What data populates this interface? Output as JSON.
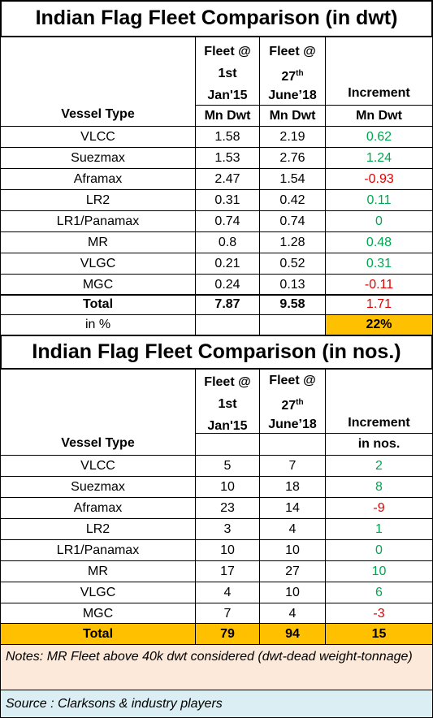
{
  "table_dwt": {
    "title": "Indian Flag Fleet Comparison  (in dwt)",
    "header": {
      "col_fleet_2015": [
        "Fleet @",
        "1st",
        "Jan'15"
      ],
      "col_fleet_2018": [
        "Fleet @",
        "27",
        "th",
        "June’18"
      ],
      "col_increment": "Increment",
      "vessel_type": "Vessel Type",
      "unit_2015": "Mn Dwt",
      "unit_2018": "Mn Dwt",
      "unit_increment": "Mn Dwt"
    },
    "rows": [
      {
        "type": "VLCC",
        "fleet_2015": "1.58",
        "fleet_2018": "2.19",
        "increment": "0.62",
        "sign": "pos"
      },
      {
        "type": "Suezmax",
        "fleet_2015": "1.53",
        "fleet_2018": "2.76",
        "increment": "1.24",
        "sign": "pos"
      },
      {
        "type": "Aframax",
        "fleet_2015": "2.47",
        "fleet_2018": "1.54",
        "increment": "-0.93",
        "sign": "neg"
      },
      {
        "type": "LR2",
        "fleet_2015": "0.31",
        "fleet_2018": "0.42",
        "increment": "0.11",
        "sign": "pos"
      },
      {
        "type": "LR1/Panamax",
        "fleet_2015": "0.74",
        "fleet_2018": "0.74",
        "increment": "0",
        "sign": "pos"
      },
      {
        "type": "MR",
        "fleet_2015": "0.8",
        "fleet_2018": "1.28",
        "increment": "0.48",
        "sign": "pos"
      },
      {
        "type": "VLGC",
        "fleet_2015": "0.21",
        "fleet_2018": "0.52",
        "increment": "0.31",
        "sign": "pos"
      },
      {
        "type": "MGC",
        "fleet_2015": "0.24",
        "fleet_2018": "0.13",
        "increment": "-0.11",
        "sign": "neg"
      }
    ],
    "total": {
      "type": "Total",
      "fleet_2015": "7.87",
      "fleet_2018": "9.58",
      "increment": "1.71"
    },
    "percent": {
      "label": "in %",
      "increment": "22%"
    }
  },
  "table_nos": {
    "title": "Indian Flag Fleet Comparison (in nos.)",
    "header": {
      "col_fleet_2015": [
        "Fleet @",
        "1st",
        "Jan'15"
      ],
      "col_fleet_2018": [
        "Fleet @",
        "27",
        "th",
        "June’18"
      ],
      "col_increment": [
        "Increment",
        "in nos."
      ],
      "vessel_type": "Vessel Type"
    },
    "rows": [
      {
        "type": "VLCC",
        "fleet_2015": "5",
        "fleet_2018": "7",
        "increment": "2",
        "sign": "pos"
      },
      {
        "type": "Suezmax",
        "fleet_2015": "10",
        "fleet_2018": "18",
        "increment": "8",
        "sign": "pos"
      },
      {
        "type": "Aframax",
        "fleet_2015": "23",
        "fleet_2018": "14",
        "increment": "-9",
        "sign": "neg"
      },
      {
        "type": "LR2",
        "fleet_2015": "3",
        "fleet_2018": "4",
        "increment": "1",
        "sign": "pos"
      },
      {
        "type": "LR1/Panamax",
        "fleet_2015": "10",
        "fleet_2018": "10",
        "increment": "0",
        "sign": "pos"
      },
      {
        "type": "MR",
        "fleet_2015": "17",
        "fleet_2018": "27",
        "increment": "10",
        "sign": "pos"
      },
      {
        "type": "VLGC",
        "fleet_2015": "4",
        "fleet_2018": "10",
        "increment": "6",
        "sign": "pos"
      },
      {
        "type": "MGC",
        "fleet_2015": "7",
        "fleet_2018": "4",
        "increment": "-3",
        "sign": "neg"
      }
    ],
    "total": {
      "type": "Total",
      "fleet_2015": "79",
      "fleet_2018": "94",
      "increment": "15"
    }
  },
  "notes": "Notes: MR Fleet above 40k dwt considered (dwt-dead weight-tonnage)",
  "source": "Source : Clarksons & industry players",
  "colors": {
    "positive": "#00a650",
    "negative": "#e00000",
    "highlight": "#ffc000",
    "notes_bg": "#fde9d9",
    "source_bg": "#daeef3"
  }
}
